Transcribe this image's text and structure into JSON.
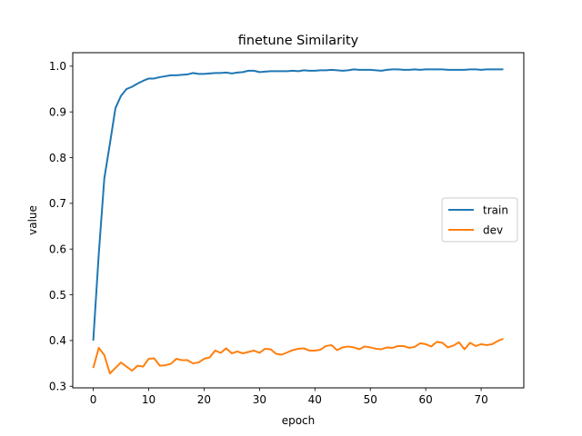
{
  "chart_data": {
    "type": "line",
    "title": "finetune Similarity",
    "xlabel": "epoch",
    "ylabel": "value",
    "xlim": [
      -3.7,
      77.7
    ],
    "ylim": [
      0.2965,
      1.0295
    ],
    "xticks": [
      0,
      10,
      20,
      30,
      40,
      50,
      60,
      70
    ],
    "xtick_labels": [
      "0",
      "10",
      "20",
      "30",
      "40",
      "50",
      "60",
      "70"
    ],
    "yticks": [
      0.3,
      0.4,
      0.5,
      0.6,
      0.7,
      0.8,
      0.9,
      1.0
    ],
    "ytick_labels": [
      "0.3",
      "0.4",
      "0.5",
      "0.6",
      "0.7",
      "0.8",
      "0.9",
      "1.0"
    ],
    "grid": false,
    "legend_position": "center-right",
    "x": [
      0,
      1,
      2,
      3,
      4,
      5,
      6,
      7,
      8,
      9,
      10,
      11,
      12,
      13,
      14,
      15,
      16,
      17,
      18,
      19,
      20,
      21,
      22,
      23,
      24,
      25,
      26,
      27,
      28,
      29,
      30,
      31,
      32,
      33,
      34,
      35,
      36,
      37,
      38,
      39,
      40,
      41,
      42,
      43,
      44,
      45,
      46,
      47,
      48,
      49,
      50,
      51,
      52,
      53,
      54,
      55,
      56,
      57,
      58,
      59,
      60,
      61,
      62,
      63,
      64,
      65,
      66,
      67,
      68,
      69,
      70,
      71,
      72,
      73,
      74
    ],
    "series": [
      {
        "name": "train",
        "color": "#1f77b4",
        "values": [
          0.4,
          0.59,
          0.755,
          0.83,
          0.908,
          0.935,
          0.95,
          0.955,
          0.962,
          0.968,
          0.973,
          0.973,
          0.976,
          0.978,
          0.98,
          0.98,
          0.981,
          0.982,
          0.985,
          0.983,
          0.983,
          0.984,
          0.985,
          0.985,
          0.986,
          0.984,
          0.986,
          0.987,
          0.99,
          0.99,
          0.987,
          0.988,
          0.989,
          0.989,
          0.989,
          0.989,
          0.99,
          0.989,
          0.991,
          0.99,
          0.99,
          0.991,
          0.991,
          0.992,
          0.991,
          0.99,
          0.991,
          0.993,
          0.992,
          0.992,
          0.992,
          0.991,
          0.99,
          0.992,
          0.993,
          0.993,
          0.992,
          0.992,
          0.993,
          0.992,
          0.993,
          0.993,
          0.993,
          0.993,
          0.992,
          0.992,
          0.992,
          0.992,
          0.993,
          0.993,
          0.992,
          0.993,
          0.993,
          0.993,
          0.993
        ]
      },
      {
        "name": "dev",
        "color": "#ff7f0e",
        "values": [
          0.34,
          0.384,
          0.368,
          0.328,
          0.34,
          0.352,
          0.343,
          0.334,
          0.345,
          0.343,
          0.36,
          0.361,
          0.345,
          0.346,
          0.349,
          0.36,
          0.357,
          0.357,
          0.35,
          0.352,
          0.36,
          0.363,
          0.378,
          0.373,
          0.383,
          0.372,
          0.376,
          0.372,
          0.375,
          0.378,
          0.373,
          0.382,
          0.381,
          0.371,
          0.369,
          0.374,
          0.379,
          0.382,
          0.383,
          0.378,
          0.378,
          0.38,
          0.388,
          0.39,
          0.379,
          0.385,
          0.387,
          0.385,
          0.381,
          0.387,
          0.385,
          0.382,
          0.381,
          0.385,
          0.384,
          0.388,
          0.388,
          0.384,
          0.386,
          0.394,
          0.392,
          0.387,
          0.397,
          0.395,
          0.385,
          0.389,
          0.396,
          0.381,
          0.395,
          0.388,
          0.392,
          0.39,
          0.392,
          0.399,
          0.404
        ]
      }
    ]
  }
}
